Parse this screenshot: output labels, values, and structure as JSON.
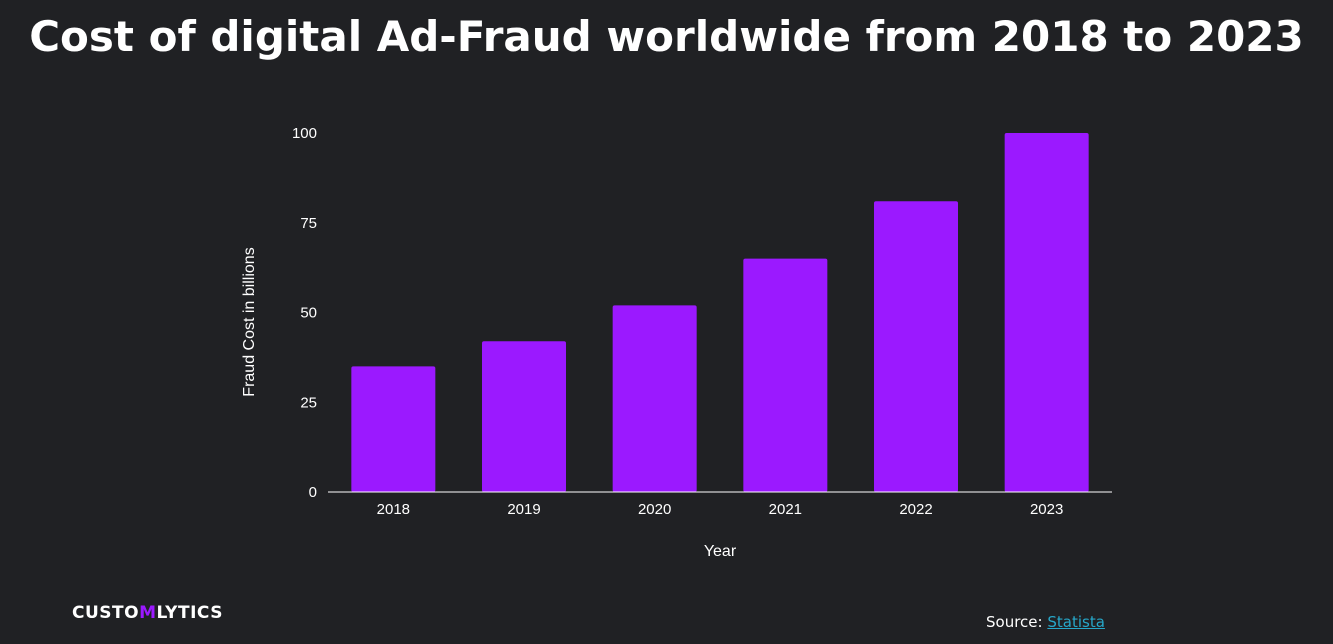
{
  "title": "Cost of digital Ad-Fraud worldwide from 2018 to 2023",
  "brand": {
    "part1": "CUSTO",
    "accent": "M",
    "part2": "LYTICS"
  },
  "source": {
    "label": "Source:",
    "link_text": "Statista"
  },
  "colors": {
    "background": "#202124",
    "bar": "#9b19ff",
    "link": "#26a7c9",
    "text": "#ffffff"
  },
  "chart_data": {
    "type": "bar",
    "title": "Cost of digital Ad-Fraud worldwide from 2018 to 2023",
    "xlabel": "Year",
    "ylabel": "Fraud Cost in billions",
    "categories": [
      "2018",
      "2019",
      "2020",
      "2021",
      "2022",
      "2023"
    ],
    "values": [
      35,
      42,
      52,
      65,
      81,
      100
    ],
    "ylim": [
      0,
      100
    ],
    "yticks": [
      0,
      25,
      50,
      75,
      100
    ],
    "grid": false,
    "legend": "none"
  }
}
